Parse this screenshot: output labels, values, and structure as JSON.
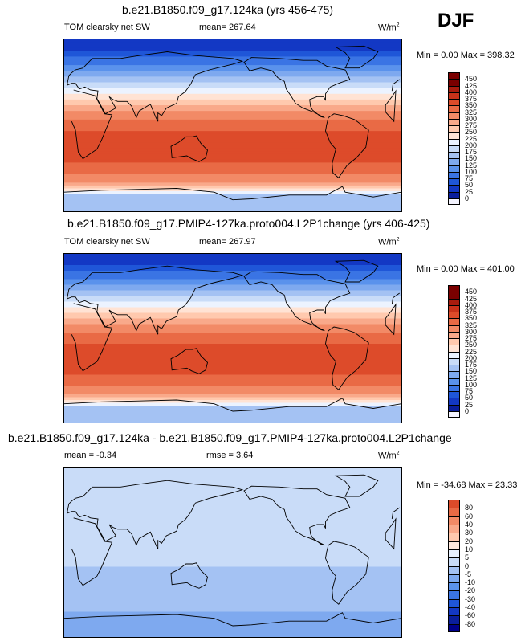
{
  "season": "DJF",
  "colors": {
    "top": [
      "#f4f4ff",
      "#0a1e9c",
      "#1338c4",
      "#1f56d8",
      "#3a74e4",
      "#5a92ec",
      "#7ea9ef",
      "#a4c2f3",
      "#c9dcf8",
      "#ecf3ff",
      "#ffe3d4",
      "#ffc9ae",
      "#f9a98a",
      "#f28a66",
      "#e96a45",
      "#dd4b2a",
      "#c9321a",
      "#a81c0e",
      "#7a0000"
    ],
    "diff": [
      "#00008a",
      "#0a1e9c",
      "#1338c4",
      "#1f56d8",
      "#3a74e4",
      "#5a92ec",
      "#7ea9ef",
      "#a4c2f3",
      "#c9dcf8",
      "#e8f1ff",
      "#ffe8dc",
      "#ffc9ae",
      "#f9a98a",
      "#f28a66",
      "#e96a45",
      "#dd4b2a",
      "#c9321a",
      "#a81c0e",
      "#7a0000"
    ]
  },
  "panels": [
    {
      "title": "b.e21.B1850.f09_g17.124ka (yrs 456-475)",
      "left_label": "TOM clearsky net SW",
      "center_label": "mean= 267.64",
      "units": "W/m",
      "units_sup": "2",
      "minmax": "Min =   0.00 Max = 398.32"
    },
    {
      "title": "b.e21.B1850.f09_g17.PMIP4-127ka.proto004.L2P1change (yrs 406-425)",
      "left_label": "TOM clearsky net SW",
      "center_label": "mean= 267.97",
      "units": "W/m",
      "units_sup": "2",
      "minmax": "Min =   0.00 Max = 401.00"
    },
    {
      "title": "b.e21.B1850.f09_g17.124ka - b.e21.B1850.f09_g17.PMIP4-127ka.proto004.L2P1change",
      "left_label": "mean =  -0.34",
      "center_label": "rmse =   3.64",
      "units": "W/m",
      "units_sup": "2",
      "minmax": "Min = -34.68 Max =  23.33"
    }
  ],
  "chart_data": [
    {
      "type": "heatmap",
      "title": "b.e21.B1850.f09_g17.124ka (yrs 456-475)",
      "variable": "TOM clearsky net SW",
      "units": "W/m2",
      "mean": 267.64,
      "min": 0.0,
      "max": 398.32,
      "colorbar_levels": [
        0,
        25,
        50,
        75,
        100,
        125,
        150,
        175,
        200,
        225,
        250,
        275,
        300,
        325,
        350,
        375,
        400,
        425,
        450
      ],
      "latitude_profile": {
        "lat": [
          90,
          75,
          60,
          45,
          30,
          15,
          0,
          -15,
          -30,
          -45,
          -60,
          -75,
          -90
        ],
        "value": [
          25,
          60,
          110,
          170,
          240,
          300,
          340,
          360,
          360,
          340,
          300,
          160,
          150
        ]
      }
    },
    {
      "type": "heatmap",
      "title": "b.e21.B1850.f09_g17.PMIP4-127ka.proto004.L2P1change (yrs 406-425)",
      "variable": "TOM clearsky net SW",
      "units": "W/m2",
      "mean": 267.97,
      "min": 0.0,
      "max": 401.0,
      "colorbar_levels": [
        0,
        25,
        50,
        75,
        100,
        125,
        150,
        175,
        200,
        225,
        250,
        275,
        300,
        325,
        350,
        375,
        400,
        425,
        450
      ],
      "latitude_profile": {
        "lat": [
          90,
          75,
          60,
          45,
          30,
          15,
          0,
          -15,
          -30,
          -45,
          -60,
          -75,
          -90
        ],
        "value": [
          25,
          60,
          110,
          170,
          240,
          300,
          340,
          362,
          362,
          340,
          300,
          160,
          150
        ]
      }
    },
    {
      "type": "heatmap",
      "title": "b.e21.B1850.f09_g17.124ka - b.e21.B1850.f09_g17.PMIP4-127ka.proto004.L2P1change",
      "units": "W/m2",
      "mean": -0.34,
      "rmse": 3.64,
      "min": -34.68,
      "max": 23.33,
      "colorbar_levels": [
        -80,
        -60,
        -40,
        -30,
        -20,
        -10,
        -5,
        0,
        5,
        10,
        20,
        30,
        40,
        60,
        80
      ],
      "latitude_profile": {
        "lat": [
          90,
          75,
          60,
          45,
          30,
          15,
          0,
          -15,
          -30,
          -45,
          -60,
          -75,
          -90
        ],
        "value": [
          2,
          3,
          4,
          3,
          2,
          1,
          1,
          0,
          -1,
          -3,
          -4,
          -10,
          -5
        ]
      }
    }
  ]
}
